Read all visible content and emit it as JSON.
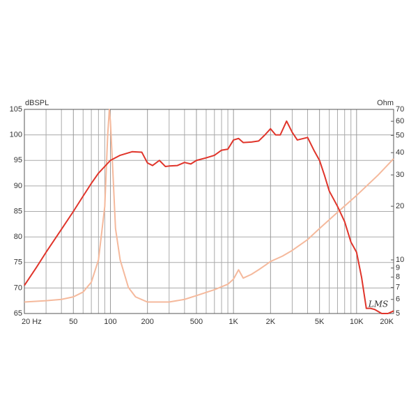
{
  "chart_data": {
    "type": "line",
    "xscale": "log",
    "y2scale": "log",
    "grid": true,
    "ylabel": "dBSPL",
    "y2label": "Ohm",
    "watermark": "LMS",
    "xlim": [
      20,
      20000
    ],
    "xticks": [
      {
        "value": 20,
        "label": "20  Hz"
      },
      50,
      100,
      200,
      500,
      {
        "value": 1000,
        "label": "1K"
      },
      {
        "value": 2000,
        "label": "2K"
      },
      {
        "value": 5000,
        "label": "5K"
      },
      {
        "value": 10000,
        "label": "10K"
      },
      {
        "value": 20000,
        "label": "20K"
      }
    ],
    "x_minor_ticks": [
      30,
      40,
      60,
      70,
      80,
      90,
      300,
      400,
      600,
      700,
      800,
      900,
      3000,
      4000,
      6000,
      7000,
      8000,
      9000
    ],
    "ylim": [
      65,
      105
    ],
    "yticks": [
      65,
      70,
      75,
      80,
      85,
      90,
      95,
      100,
      105
    ],
    "y2lim": [
      5,
      70
    ],
    "y2ticks": [
      5,
      6,
      7,
      8,
      9,
      10,
      20,
      30,
      40,
      50,
      60,
      70
    ],
    "series": [
      {
        "color": "#e0342a",
        "x": [
          20,
          25,
          30,
          40,
          50,
          60,
          70,
          80,
          100,
          120,
          150,
          180,
          200,
          220,
          250,
          280,
          300,
          350,
          400,
          450,
          500,
          600,
          700,
          800,
          900,
          1000,
          1100,
          1200,
          1400,
          1600,
          1800,
          2000,
          2200,
          2400,
          2700,
          3000,
          3300,
          4000,
          4500,
          5000,
          5500,
          6000,
          7000,
          8000,
          9000,
          10000,
          11000,
          12000,
          13000,
          14000,
          16000,
          18000,
          20000
        ],
        "values": [
          70.5,
          74,
          77,
          81.5,
          85,
          88,
          90.5,
          92.5,
          95,
          96,
          96.7,
          96.6,
          94.5,
          94,
          95,
          93.8,
          93.9,
          94,
          94.6,
          94.3,
          95,
          95.5,
          96,
          97,
          97.2,
          99,
          99.3,
          98.5,
          98.6,
          98.8,
          100,
          101.2,
          100,
          100,
          102.7,
          100.5,
          99,
          99.5,
          97,
          95,
          92,
          89,
          86,
          83,
          79,
          77,
          72,
          66,
          66,
          65.8,
          65,
          65,
          65.5
        ]
      },
      {
        "color": "#f5b99c",
        "axis": "y2",
        "x": [
          20,
          30,
          40,
          50,
          60,
          70,
          80,
          90,
          95,
          98,
          100,
          105,
          110,
          120,
          140,
          160,
          200,
          300,
          400,
          500,
          700,
          900,
          1000,
          1100,
          1200,
          1400,
          1600,
          1800,
          2000,
          2500,
          3000,
          4000,
          5000,
          7000,
          10000,
          15000,
          20000
        ],
        "values": [
          5.8,
          5.9,
          6,
          6.2,
          6.6,
          7.5,
          10,
          20,
          50,
          70,
          60,
          30,
          15,
          10,
          7,
          6.2,
          5.8,
          5.8,
          6,
          6.3,
          6.8,
          7.3,
          7.8,
          8.8,
          7.9,
          8.3,
          8.8,
          9.3,
          9.8,
          10.5,
          11.3,
          13,
          15,
          18.5,
          23,
          30,
          37
        ]
      }
    ]
  }
}
